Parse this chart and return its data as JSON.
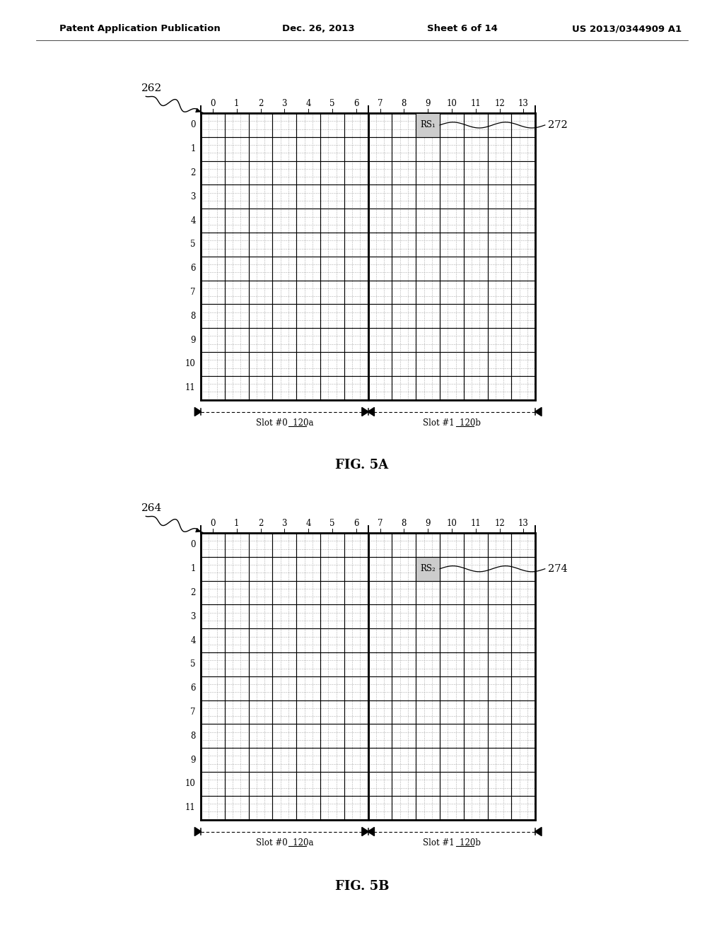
{
  "background_color": "#ffffff",
  "header_text": "Patent Application Publication",
  "header_date": "Dec. 26, 2013",
  "header_sheet": "Sheet 6 of 14",
  "header_patent": "US 2013/0344909 A1",
  "fig1_label": "262",
  "fig2_label": "264",
  "fig1_rs_label": "272",
  "fig2_rs_label": "274",
  "fig1_rs_text": "RS₁",
  "fig2_rs_text": "RS₂",
  "fig1_rs_col": 9,
  "fig1_rs_row": 0,
  "fig2_rs_col": 9,
  "fig2_rs_row": 1,
  "col_ticks": [
    "0",
    "1",
    "2",
    "3",
    "4",
    "5",
    "6",
    "7",
    "8",
    "9",
    "10",
    "11",
    "12",
    "13"
  ],
  "row_ticks": [
    "0",
    "1",
    "2",
    "3",
    "4",
    "5",
    "6",
    "7",
    "8",
    "9",
    "10",
    "11"
  ],
  "num_cols": 14,
  "num_rows": 12,
  "slot_divider_col": 7,
  "slot0_label": "Slot #0",
  "slot0_ref": "120a",
  "slot1_label": "Slot #1",
  "slot1_ref": "120b",
  "caption1": "FIG. 5A",
  "caption2": "FIG. 5B",
  "rs_fill_color": "#cccccc",
  "grid_major_color": "#000000"
}
